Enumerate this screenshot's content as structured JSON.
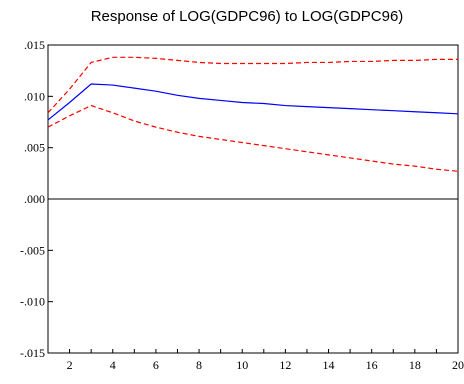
{
  "chart_data": {
    "type": "line",
    "title": "Response of LOG(GDPC96) to LOG(GDPC96)",
    "xlabel": "",
    "ylabel": "",
    "xlim": [
      1,
      20
    ],
    "ylim": [
      -0.015,
      0.015
    ],
    "x_ticks": [
      2,
      4,
      6,
      8,
      10,
      12,
      14,
      16,
      18,
      20
    ],
    "y_ticks": [
      0.015,
      0.01,
      0.005,
      0.0,
      -0.005,
      -0.01,
      -0.015
    ],
    "y_tick_labels": [
      ".015",
      ".010",
      ".005",
      ".000",
      "-.005",
      "-.010",
      "-.015"
    ],
    "x": [
      1,
      2,
      3,
      4,
      5,
      6,
      7,
      8,
      9,
      10,
      11,
      12,
      13,
      14,
      15,
      16,
      17,
      18,
      19,
      20
    ],
    "series": [
      {
        "role": "response",
        "color": "#0000ff",
        "style": "solid",
        "values": [
          0.0077,
          0.0094,
          0.0112,
          0.0111,
          0.0108,
          0.0105,
          0.0101,
          0.0098,
          0.0096,
          0.0094,
          0.0093,
          0.0091,
          0.009,
          0.0089,
          0.0088,
          0.0087,
          0.0086,
          0.0085,
          0.0084,
          0.0083
        ]
      },
      {
        "role": "upper-band",
        "color": "#ff0000",
        "style": "dashed",
        "values": [
          0.0084,
          0.0107,
          0.0133,
          0.0138,
          0.0138,
          0.0137,
          0.0135,
          0.0133,
          0.0132,
          0.0132,
          0.0132,
          0.0132,
          0.0133,
          0.0133,
          0.0134,
          0.0134,
          0.0135,
          0.0135,
          0.0136,
          0.0136
        ]
      },
      {
        "role": "lower-band",
        "color": "#ff0000",
        "style": "dashed",
        "values": [
          0.007,
          0.0081,
          0.0091,
          0.0084,
          0.0076,
          0.007,
          0.0065,
          0.0061,
          0.0058,
          0.0055,
          0.0052,
          0.0049,
          0.0046,
          0.0043,
          0.004,
          0.0037,
          0.0034,
          0.0032,
          0.0029,
          0.0027
        ]
      }
    ],
    "zero_line": true,
    "grid": false,
    "legend": "none"
  }
}
